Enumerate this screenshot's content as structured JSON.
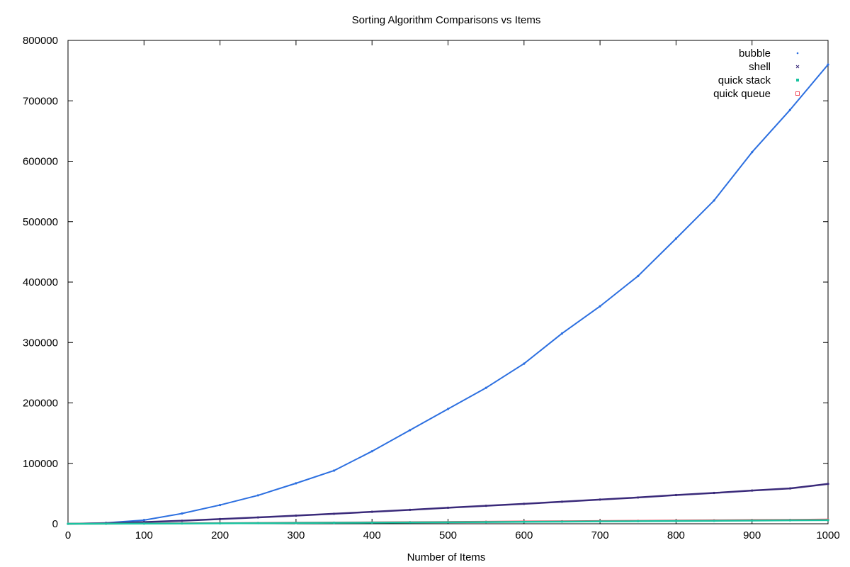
{
  "chart_data": {
    "type": "scatter",
    "title": "Sorting Algorithm Comparisons vs Items",
    "xlabel": "Number of Items",
    "ylabel": "",
    "xlim": [
      0,
      1000
    ],
    "ylim": [
      0,
      800000
    ],
    "xticks": [
      0,
      100,
      200,
      300,
      400,
      500,
      600,
      700,
      800,
      900,
      1000
    ],
    "yticks": [
      0,
      100000,
      200000,
      300000,
      400000,
      500000,
      600000,
      700000,
      800000
    ],
    "grid": false,
    "legend_position": "top-right",
    "x": [
      0,
      50,
      100,
      150,
      200,
      250,
      300,
      350,
      400,
      450,
      500,
      550,
      600,
      650,
      700,
      750,
      800,
      850,
      900,
      950,
      1000
    ],
    "series": [
      {
        "name": "bubble",
        "color": "#2c6fe0",
        "marker": "dot",
        "values": [
          0,
          1500,
          6000,
          17000,
          31000,
          47000,
          67000,
          88000,
          120000,
          155000,
          190000,
          225000,
          265000,
          315000,
          360000,
          410000,
          472000,
          535000,
          615000,
          685000,
          760000
        ]
      },
      {
        "name": "shell",
        "color": "#3a2a7a",
        "marker": "x",
        "values": [
          0,
          1000,
          2800,
          5000,
          7800,
          10500,
          13500,
          16500,
          19800,
          23000,
          26500,
          29800,
          33000,
          36500,
          40000,
          43500,
          47500,
          51000,
          55000,
          58500,
          66000
        ]
      },
      {
        "name": "quick stack",
        "color": "#19c3a0",
        "marker": "square",
        "values": [
          0,
          100,
          300,
          500,
          800,
          1000,
          1300,
          1600,
          1900,
          2200,
          2500,
          2800,
          3200,
          3500,
          3900,
          4200,
          4600,
          4900,
          5300,
          5700,
          6000
        ]
      },
      {
        "name": "quick queue",
        "color": "#f04a5a",
        "marker": "hollow-square",
        "values": [
          0,
          200,
          400,
          700,
          1000,
          1300,
          1700,
          2000,
          2300,
          2700,
          3000,
          3400,
          3800,
          4100,
          4500,
          4900,
          5300,
          5700,
          6100,
          6500,
          7000
        ]
      }
    ]
  }
}
